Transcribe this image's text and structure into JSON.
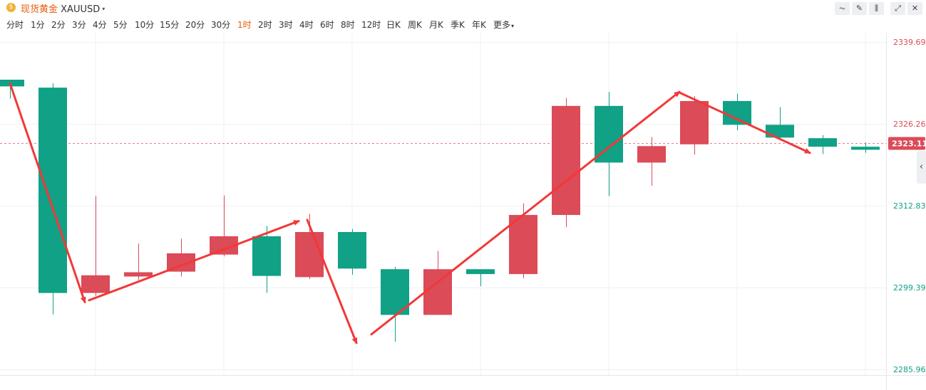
{
  "header": {
    "instrument_cn": "现货黄金",
    "instrument_code": "XAUUSD",
    "logo_glyph": "$",
    "caret": "▾"
  },
  "toolbar": [
    {
      "name": "indicator-icon",
      "glyph": "⏦"
    },
    {
      "name": "draw-icon",
      "glyph": "✎"
    },
    {
      "name": "candle-type-icon",
      "glyph": "⫼"
    },
    {
      "name": "fullscreen-icon",
      "glyph": "⤢"
    },
    {
      "name": "close-icon",
      "glyph": "✕"
    }
  ],
  "periods": [
    "分时",
    "1分",
    "2分",
    "3分",
    "4分",
    "5分",
    "10分",
    "15分",
    "20分",
    "30分",
    "1时",
    "2时",
    "3时",
    "4时",
    "6时",
    "8时",
    "12时",
    "日K",
    "周K",
    "月K",
    "季K",
    "年K",
    "更多"
  ],
  "active_period": "1时",
  "colors": {
    "up": "#db4b58",
    "down": "#10a186",
    "arrow": "#f23838",
    "grid": "#eef0f3",
    "price_line": "#e87f88",
    "current_badge": "#db4b58"
  },
  "chart_data": {
    "type": "candlestick",
    "y_ticks": [
      2339.69,
      2326.26,
      2312.83,
      2299.39,
      2285.96
    ],
    "ylim": [
      2285.96,
      2339.69
    ],
    "current_price": "2323.11",
    "candles": [
      {
        "open": 2333.5,
        "close": 2332.4,
        "high": 2333.5,
        "low": 2330.4
      },
      {
        "open": 2332.2,
        "close": 2298.5,
        "high": 2332.9,
        "low": 2295.0
      },
      {
        "open": 2298.5,
        "close": 2301.4,
        "high": 2314.4,
        "low": 2298.0
      },
      {
        "open": 2301.2,
        "close": 2301.9,
        "high": 2306.6,
        "low": 2300.6
      },
      {
        "open": 2302.0,
        "close": 2305.0,
        "high": 2307.4,
        "low": 2301.2
      },
      {
        "open": 2304.8,
        "close": 2307.8,
        "high": 2314.5,
        "low": 2304.5
      },
      {
        "open": 2307.8,
        "close": 2301.3,
        "high": 2309.5,
        "low": 2298.5
      },
      {
        "open": 2301.1,
        "close": 2308.5,
        "high": 2311.5,
        "low": 2300.8
      },
      {
        "open": 2308.5,
        "close": 2302.5,
        "high": 2309.0,
        "low": 2301.5
      },
      {
        "open": 2302.4,
        "close": 2294.9,
        "high": 2302.8,
        "low": 2290.5
      },
      {
        "open": 2294.9,
        "close": 2302.4,
        "high": 2305.4,
        "low": 2294.9
      },
      {
        "open": 2302.4,
        "close": 2301.6,
        "high": 2302.4,
        "low": 2299.6
      },
      {
        "open": 2301.6,
        "close": 2311.3,
        "high": 2313.2,
        "low": 2300.9
      },
      {
        "open": 2311.3,
        "close": 2329.2,
        "high": 2330.5,
        "low": 2309.3
      },
      {
        "open": 2329.2,
        "close": 2319.9,
        "high": 2331.5,
        "low": 2314.4
      },
      {
        "open": 2319.9,
        "close": 2322.6,
        "high": 2324.1,
        "low": 2316.1
      },
      {
        "open": 2322.9,
        "close": 2330.0,
        "high": 2330.8,
        "low": 2321.2
      },
      {
        "open": 2330.0,
        "close": 2326.1,
        "high": 2331.2,
        "low": 2325.2
      },
      {
        "open": 2326.1,
        "close": 2324.0,
        "high": 2329.0,
        "low": 2323.6
      },
      {
        "open": 2323.9,
        "close": 2322.5,
        "high": 2324.4,
        "low": 2321.3
      },
      {
        "open": 2322.5,
        "close": 2322.0,
        "high": 2323.2,
        "low": 2321.5
      }
    ],
    "trend_arrows": [
      {
        "from": {
          "bar": 0,
          "price": 2332.9
        },
        "to": {
          "bar": 1.75,
          "price": 2297.0
        }
      },
      {
        "from": {
          "bar": 1.85,
          "price": 2297.3
        },
        "to": {
          "bar": 6.75,
          "price": 2310.3
        }
      },
      {
        "from": {
          "bar": 6.95,
          "price": 2310.5
        },
        "to": {
          "bar": 8.1,
          "price": 2290.3
        }
      },
      {
        "from": {
          "bar": 8.45,
          "price": 2291.7
        },
        "to": {
          "bar": 15.65,
          "price": 2331.5
        }
      },
      {
        "from": {
          "bar": 15.65,
          "price": 2331.4
        },
        "to": {
          "bar": 18.7,
          "price": 2321.5
        }
      }
    ]
  }
}
